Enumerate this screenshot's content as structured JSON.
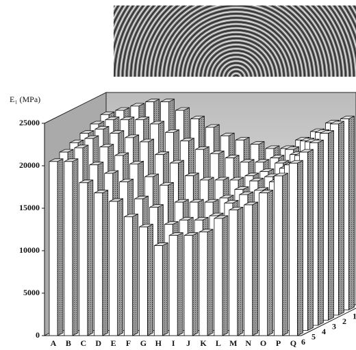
{
  "chart_data": {
    "type": "bar3d",
    "y_label": "E₁ (MPa)",
    "categories": [
      "A",
      "B",
      "C",
      "D",
      "E",
      "F",
      "G",
      "H",
      "I",
      "J",
      "K",
      "L",
      "M",
      "N",
      "O",
      "P",
      "Q"
    ],
    "series": [
      {
        "name": "1",
        "values": [
          23000,
          23500,
          24000,
          24500,
          24500,
          23500,
          22500,
          21500,
          20500,
          20000,
          19500,
          19000,
          19000,
          20000,
          21000,
          22000,
          22500
        ]
      },
      {
        "name": "2",
        "values": [
          22500,
          23000,
          23000,
          23000,
          22500,
          21500,
          20500,
          19500,
          19000,
          18500,
          18000,
          18000,
          18500,
          19500,
          20500,
          21500,
          22500
        ]
      },
      {
        "name": "3",
        "values": [
          22000,
          22500,
          22000,
          21500,
          21000,
          19500,
          18500,
          17000,
          16500,
          16500,
          16500,
          17000,
          17500,
          18500,
          19500,
          21000,
          22000
        ]
      },
      {
        "name": "4",
        "values": [
          21500,
          22000,
          21000,
          20000,
          19000,
          17500,
          16500,
          14500,
          14500,
          14500,
          15000,
          16000,
          17000,
          17500,
          18500,
          20000,
          21500
        ]
      },
      {
        "name": "5",
        "values": [
          21000,
          21500,
          19500,
          18500,
          17500,
          15500,
          14500,
          12500,
          13000,
          13000,
          13500,
          15000,
          16000,
          16500,
          17500,
          19500,
          21000
        ]
      },
      {
        "name": "6",
        "values": [
          20500,
          20500,
          18000,
          16800,
          15800,
          14000,
          12800,
          10600,
          11800,
          11800,
          12200,
          13800,
          14800,
          15400,
          16800,
          18800,
          20300
        ]
      }
    ],
    "ylim": [
      0,
      25000
    ],
    "yticks": [
      0,
      5000,
      10000,
      15000,
      20000,
      25000
    ]
  }
}
